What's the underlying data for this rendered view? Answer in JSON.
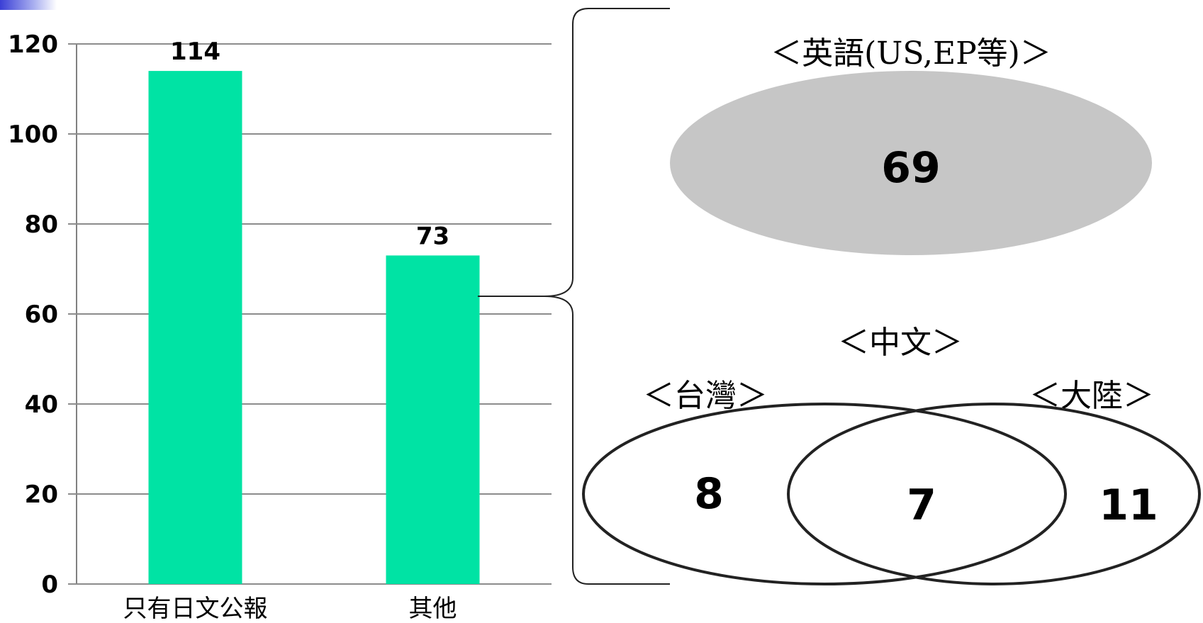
{
  "chart_data": [
    {
      "type": "bar",
      "categories": [
        "只有日文公報",
        "其他"
      ],
      "values": [
        114,
        73
      ],
      "data_labels": [
        "114",
        "73"
      ],
      "ylim": [
        0,
        120
      ],
      "yticks": [
        "0",
        "20",
        "40",
        "60",
        "80",
        "100",
        "120"
      ],
      "grid": true,
      "bar_color": "#00e3a4",
      "title": "",
      "xlabel": "",
      "ylabel": ""
    },
    {
      "type": "venn",
      "english": {
        "label": "＜英語(US,EP等)＞",
        "value": "69",
        "color": "#c6c6c6"
      },
      "chinese": {
        "label": "＜中文＞",
        "taiwan_label": "＜台灣＞",
        "mainland_label": "＜大陸＞",
        "taiwan_only": "8",
        "both": "7",
        "mainland_only": "11"
      }
    }
  ]
}
